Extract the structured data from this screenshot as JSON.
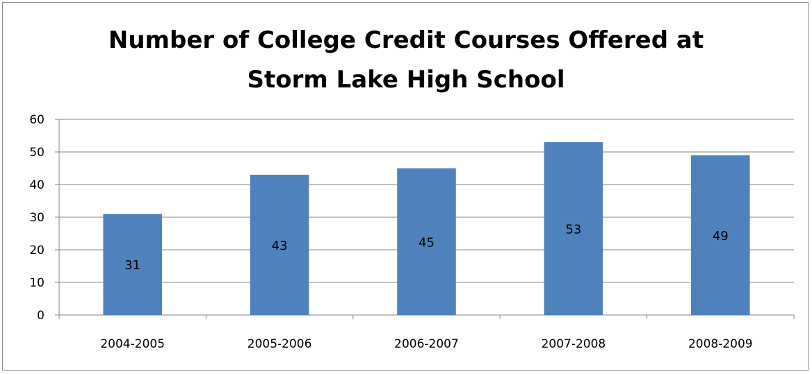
{
  "chart_data": {
    "type": "bar",
    "title_lines": [
      "Number of College Credit Courses Offered at",
      "Storm Lake High School"
    ],
    "categories": [
      "2004-2005",
      "2005-2006",
      "2006-2007",
      "2007-2008",
      "2008-2009"
    ],
    "values": [
      31,
      43,
      45,
      53,
      49
    ],
    "data_labels": [
      "31",
      "43",
      "45",
      "53",
      "49"
    ],
    "ylim": [
      0,
      60
    ],
    "yticks": [
      0,
      10,
      20,
      30,
      40,
      50,
      60
    ],
    "xlabel": "",
    "ylabel": "",
    "grid": true,
    "legend": "none",
    "bar_color": "#4f81bd",
    "grid_color": "#868686"
  }
}
